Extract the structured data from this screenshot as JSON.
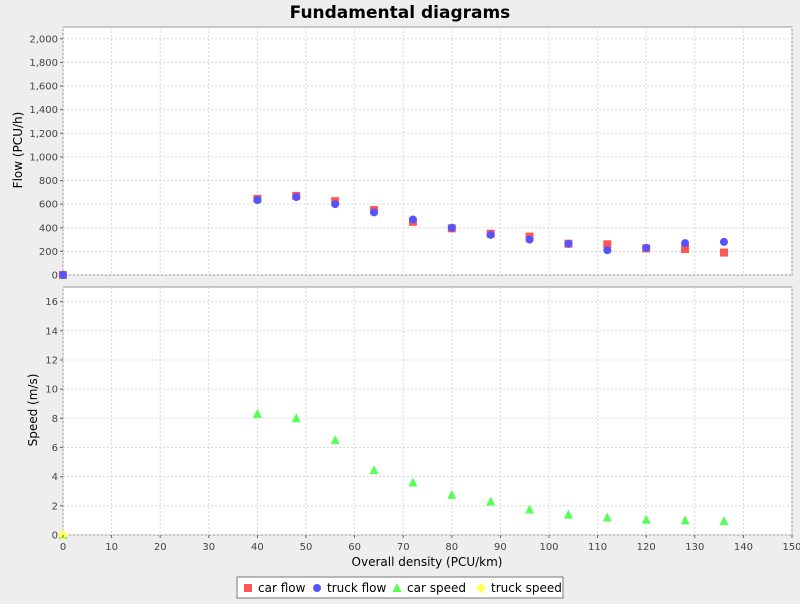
{
  "chart_data": {
    "type": "scatter",
    "title": "Fundamental diagrams",
    "xlabel": "Overall density (PCU/km)",
    "xlim": [
      0,
      150
    ],
    "x_ticks": [
      "0",
      "10",
      "20",
      "30",
      "40",
      "50",
      "60",
      "70",
      "80",
      "90",
      "100",
      "110",
      "120",
      "130",
      "140",
      "150"
    ],
    "grid": true,
    "legend_position": "bottom",
    "subplots": [
      {
        "ylabel": "Flow (PCU/h)",
        "ylim": [
          0,
          2100
        ],
        "y_ticks": [
          "0",
          "200",
          "400",
          "600",
          "800",
          "1,000",
          "1,200",
          "1,400",
          "1,600",
          "1,800",
          "2,000"
        ],
        "series": [
          {
            "name": "car flow",
            "marker": "square",
            "color": "#ff5555",
            "x": [
              0,
              40,
              48,
              56,
              64,
              72,
              80,
              88,
              96,
              104,
              112,
              120,
              128,
              136
            ],
            "y": [
              0,
              645,
              670,
              625,
              550,
              450,
              395,
              350,
              325,
              265,
              260,
              225,
              220,
              190
            ]
          },
          {
            "name": "truck flow",
            "marker": "circle",
            "color": "#5555ff",
            "x": [
              0,
              40,
              48,
              56,
              64,
              72,
              80,
              88,
              96,
              104,
              112,
              120,
              128,
              136
            ],
            "y": [
              0,
              635,
              660,
              600,
              530,
              470,
              400,
              340,
              300,
              265,
              210,
              230,
              270,
              280
            ]
          }
        ]
      },
      {
        "ylabel": "Speed (m/s)",
        "ylim": [
          0,
          17
        ],
        "y_ticks": [
          "0",
          "2",
          "4",
          "6",
          "8",
          "10",
          "12",
          "14",
          "16"
        ],
        "series": [
          {
            "name": "car speed",
            "marker": "triangle",
            "color": "#55ff55",
            "x": [
              0,
              40,
              48,
              56,
              64,
              72,
              80,
              88,
              96,
              104,
              112,
              120,
              128,
              136
            ],
            "y": [
              0,
              8.3,
              8.0,
              6.5,
              4.45,
              3.6,
              2.75,
              2.3,
              1.75,
              1.4,
              1.2,
              1.05,
              1.0,
              0.95
            ]
          },
          {
            "name": "truck speed",
            "marker": "diamond",
            "color": "#ffff55",
            "x": [
              0
            ],
            "y": [
              0
            ]
          }
        ]
      }
    ]
  }
}
